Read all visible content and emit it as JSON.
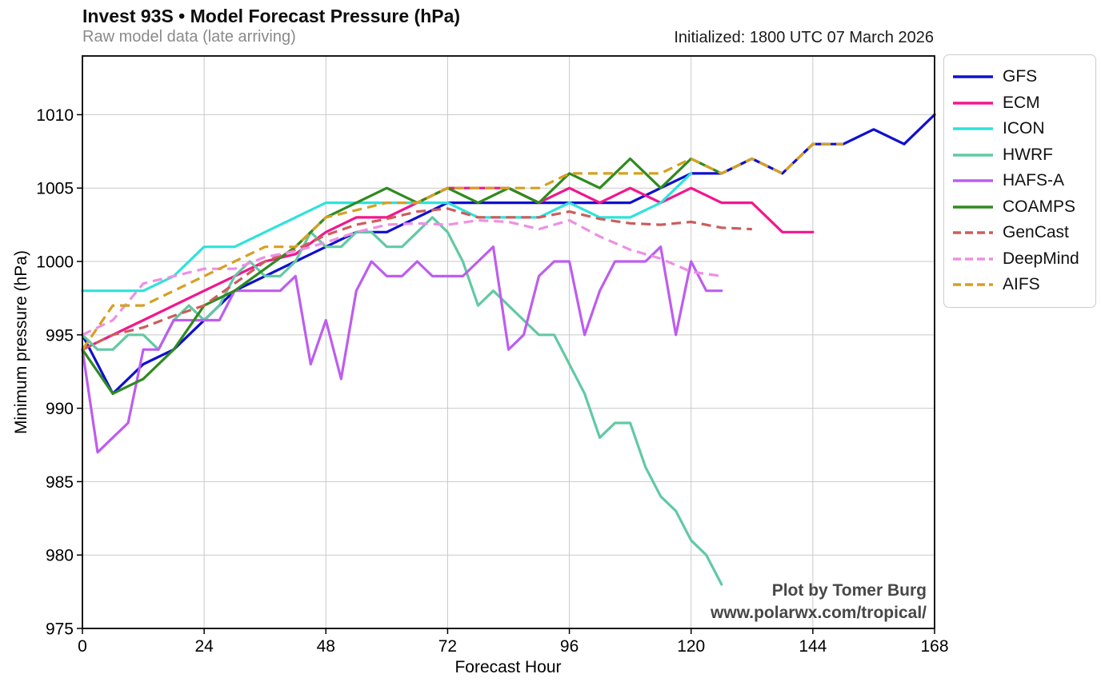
{
  "header": {
    "title": "Invest 93S • Model Forecast Pressure (hPa)",
    "subtitle": "Raw model data (late arriving)",
    "initialized": "Initialized: 1800 UTC 07 March 2026"
  },
  "watermark": {
    "line1": "Plot by Tomer Burg",
    "line2": "www.polarwx.com/tropical/"
  },
  "colors": {
    "grid": "#c9c9c9",
    "frame": "#000000",
    "subtitle": "#8a8a8a",
    "watermark": "#474747",
    "background": "#ffffff"
  },
  "chart_data": {
    "type": "line",
    "title": "Invest 93S • Model Forecast Pressure (hPa)",
    "subtitle": "Raw model data (late arriving)",
    "annotation": "Initialized: 1800 UTC 07 March 2026",
    "xlabel": "Forecast Hour",
    "ylabel": "Minimum pressure (hPa)",
    "xlim": [
      0,
      168
    ],
    "ylim": [
      975,
      1014
    ],
    "x_ticks": [
      0,
      24,
      48,
      72,
      96,
      120,
      144,
      168
    ],
    "y_ticks": [
      975,
      980,
      985,
      990,
      995,
      1000,
      1005,
      1010
    ],
    "grid": true,
    "legend_position": "outside-right",
    "series": [
      {
        "name": "GFS",
        "color": "#0f0fd0",
        "style": "solid",
        "x": [
          0,
          6,
          12,
          18,
          24,
          30,
          36,
          42,
          48,
          54,
          60,
          66,
          72,
          78,
          84,
          90,
          96,
          102,
          108,
          114,
          120,
          126,
          132,
          138,
          144,
          150,
          156,
          162,
          168
        ],
        "y": [
          995,
          991,
          993,
          994,
          996,
          998,
          999,
          1000,
          1001,
          1002,
          1002,
          1003,
          1004,
          1004,
          1004,
          1004,
          1004,
          1004,
          1004,
          1005,
          1006,
          1006,
          1007,
          1006,
          1008,
          1008,
          1009,
          1008,
          1010
        ]
      },
      {
        "name": "ECM",
        "color": "#f3168d",
        "style": "solid",
        "x": [
          0,
          6,
          12,
          18,
          24,
          30,
          36,
          42,
          48,
          54,
          60,
          66,
          72,
          78,
          84,
          90,
          96,
          102,
          108,
          114,
          120,
          126,
          132,
          138,
          144
        ],
        "y": [
          994,
          995,
          996,
          997,
          998,
          999,
          1000,
          1000.5,
          1002,
          1003,
          1003,
          1004,
          1005,
          1005,
          1005,
          1004,
          1005,
          1004,
          1005,
          1004,
          1005,
          1004,
          1004,
          1002,
          1002
        ]
      },
      {
        "name": "ICON",
        "color": "#2ee3da",
        "style": "solid",
        "x": [
          0,
          6,
          12,
          18,
          24,
          30,
          36,
          42,
          48,
          54,
          60,
          66,
          72,
          78,
          84,
          90,
          96,
          102,
          108,
          114,
          120
        ],
        "y": [
          998,
          998,
          998,
          999,
          1001,
          1001,
          1002,
          1003,
          1004,
          1004,
          1004,
          1004,
          1004,
          1003,
          1003,
          1003,
          1004,
          1003,
          1003,
          1004,
          1006
        ]
      },
      {
        "name": "HWRF",
        "color": "#62c9a3",
        "style": "solid",
        "x": [
          0,
          3,
          6,
          9,
          12,
          15,
          18,
          21,
          24,
          27,
          30,
          33,
          36,
          39,
          42,
          45,
          48,
          51,
          54,
          57,
          60,
          63,
          66,
          69,
          72,
          75,
          78,
          81,
          84,
          87,
          90,
          93,
          96,
          99,
          102,
          105,
          108,
          111,
          114,
          117,
          120,
          123,
          126
        ],
        "y": [
          995,
          994,
          994,
          995,
          995,
          994,
          996,
          997,
          996,
          997,
          999,
          1000,
          999,
          999,
          1000,
          1002,
          1001,
          1001,
          1002,
          1002,
          1001,
          1001,
          1002,
          1003,
          1002,
          1000,
          997,
          998,
          997,
          996,
          995,
          995,
          993,
          991,
          988,
          989,
          989,
          986,
          984,
          983,
          981,
          980,
          978
        ]
      },
      {
        "name": "HAFS-A",
        "color": "#bd5df0",
        "style": "solid",
        "x": [
          0,
          3,
          6,
          9,
          12,
          15,
          18,
          21,
          24,
          27,
          30,
          33,
          36,
          39,
          42,
          45,
          48,
          51,
          54,
          57,
          60,
          63,
          66,
          69,
          72,
          75,
          78,
          81,
          84,
          87,
          90,
          93,
          96,
          99,
          102,
          105,
          108,
          111,
          114,
          117,
          120,
          123,
          126
        ],
        "y": [
          994,
          987,
          988,
          989,
          994,
          994,
          996,
          996,
          996,
          996,
          998,
          998,
          998,
          998,
          999,
          993,
          996,
          992,
          998,
          1000,
          999,
          999,
          1000,
          999,
          999,
          999,
          1000,
          1001,
          994,
          995,
          999,
          1000,
          1000,
          995,
          998,
          1000,
          1000,
          1000,
          1001,
          995,
          1000,
          998,
          998
        ]
      },
      {
        "name": "COAMPS",
        "color": "#2e8b1e",
        "style": "solid",
        "x": [
          0,
          6,
          12,
          18,
          24,
          30,
          36,
          42,
          48,
          54,
          60,
          66,
          72,
          78,
          84,
          90,
          96,
          102,
          108,
          114,
          120,
          126
        ],
        "y": [
          994,
          991,
          992,
          994,
          997,
          998,
          999.5,
          1001,
          1003,
          1004,
          1005,
          1004,
          1005,
          1004,
          1005,
          1004,
          1006,
          1005,
          1007,
          1005,
          1007,
          1006
        ]
      },
      {
        "name": "GenCast",
        "color": "#cd5c5c",
        "style": "dashed",
        "x": [
          0,
          6,
          12,
          18,
          24,
          30,
          36,
          42,
          48,
          54,
          60,
          66,
          72,
          78,
          84,
          90,
          96,
          102,
          108,
          114,
          120,
          126,
          132
        ],
        "y": [
          994,
          995,
          995.5,
          996.3,
          997,
          998.5,
          1000,
          1000.8,
          1001.8,
          1002.5,
          1002.9,
          1003.4,
          1003.6,
          1003,
          1003,
          1003,
          1003.4,
          1002.9,
          1002.6,
          1002.5,
          1002.7,
          1002.3,
          1002.2
        ]
      },
      {
        "name": "DeepMind",
        "color": "#ee8fe4",
        "style": "dashed",
        "x": [
          0,
          6,
          12,
          18,
          24,
          30,
          36,
          42,
          48,
          54,
          60,
          66,
          72,
          78,
          84,
          90,
          96,
          102,
          108,
          114,
          120,
          126
        ],
        "y": [
          995,
          996,
          998.5,
          999,
          999.5,
          999.5,
          1000.3,
          1000.7,
          1001.3,
          1002,
          1002.5,
          1002.6,
          1002.5,
          1002.8,
          1002.7,
          1002.2,
          1002.8,
          1001.7,
          1000.8,
          1000.2,
          999.3,
          999
        ]
      },
      {
        "name": "AIFS",
        "color": "#d6a020",
        "style": "dashed",
        "x": [
          0,
          6,
          12,
          18,
          24,
          30,
          36,
          42,
          48,
          54,
          60,
          66,
          72,
          78,
          84,
          90,
          96,
          102,
          108,
          114,
          120,
          126,
          132,
          138,
          144,
          150
        ],
        "y": [
          994,
          997,
          997,
          998,
          999,
          1000,
          1001,
          1001,
          1003,
          1003.5,
          1004,
          1004,
          1005,
          1005,
          1005,
          1005,
          1006,
          1006,
          1006,
          1006,
          1007,
          1006,
          1007,
          1006,
          1008,
          1008
        ]
      }
    ]
  }
}
